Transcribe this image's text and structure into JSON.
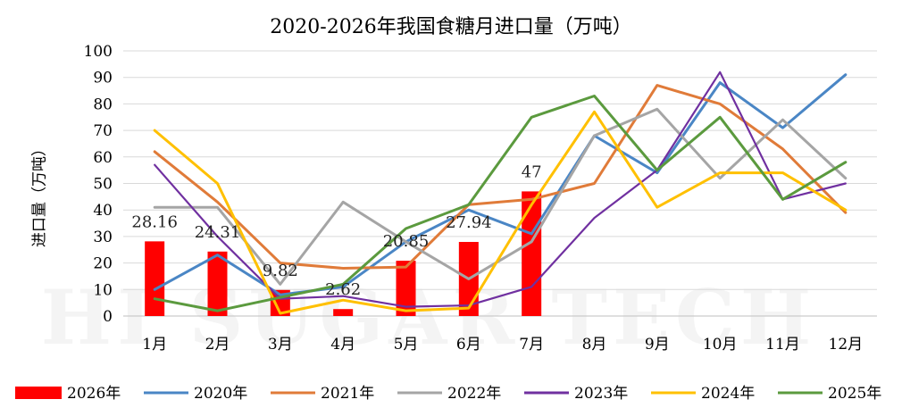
{
  "chart_data": {
    "type": "bar+line",
    "title": "2020-2026年我国食糖月进口量（万吨）",
    "ylabel": "进口量（万吨）",
    "xlabel": "",
    "ylim": [
      0,
      100
    ],
    "yticks": [
      0,
      10,
      20,
      30,
      40,
      50,
      60,
      70,
      80,
      90,
      100
    ],
    "categories": [
      "1月",
      "2月",
      "3月",
      "4月",
      "5月",
      "6月",
      "7月",
      "8月",
      "9月",
      "10月",
      "11月",
      "12月"
    ],
    "legend_position": "bottom",
    "grid": true,
    "watermark": "HI SUGAR TECH",
    "bars": {
      "name": "2026年",
      "color": "#FF0000",
      "values": [
        28.16,
        24.31,
        9.82,
        2.62,
        20.85,
        27.94,
        47
      ],
      "labels": [
        "28.16",
        "24.31",
        "9.82",
        "2.62",
        "20.85",
        "27.94",
        "47"
      ]
    },
    "series": [
      {
        "name": "2020年",
        "color": "#4A86C5",
        "values": [
          10,
          23,
          8,
          11,
          28,
          40,
          31,
          68,
          54,
          88,
          71,
          91
        ]
      },
      {
        "name": "2021年",
        "color": "#E07B39",
        "values": [
          62,
          43,
          20,
          18,
          18.5,
          42,
          44,
          50,
          87,
          80,
          63,
          39
        ]
      },
      {
        "name": "2022年",
        "color": "#A5A5A5",
        "values": [
          41,
          41,
          12,
          43,
          28,
          14,
          28,
          68,
          78,
          52,
          74,
          52
        ]
      },
      {
        "name": "2023年",
        "color": "#7030A0",
        "values": [
          57,
          30,
          6.5,
          7.5,
          3.5,
          4,
          11,
          37,
          55,
          92,
          44,
          50
        ]
      },
      {
        "name": "2024年",
        "color": "#FFC000",
        "values": [
          70,
          50,
          1,
          6,
          2,
          3,
          42,
          77,
          41,
          54,
          54,
          40
        ]
      },
      {
        "name": "2025年",
        "color": "#5B9A3E",
        "values": [
          6.5,
          2,
          7,
          12,
          33,
          42,
          75,
          83,
          55,
          75,
          44,
          58
        ]
      }
    ]
  }
}
